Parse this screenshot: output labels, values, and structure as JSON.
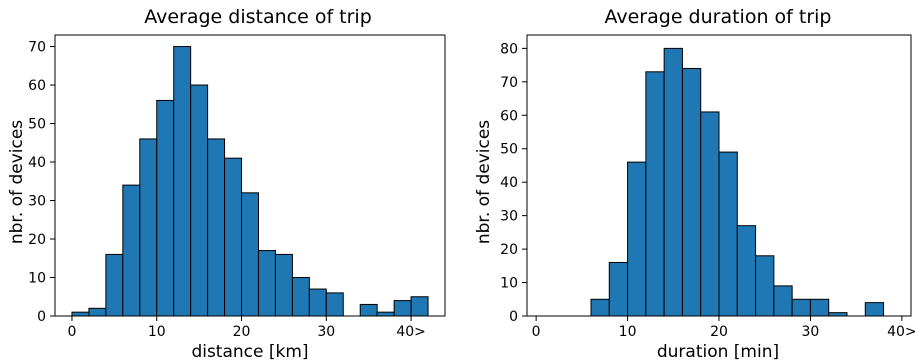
{
  "chart_data": [
    {
      "type": "bar",
      "title": "Average distance of trip",
      "xlabel": "distance [km]",
      "ylabel": "nbr. of devices",
      "xlim": [
        -2,
        44
      ],
      "ylim": [
        0,
        73
      ],
      "x_ticks": [
        0,
        10,
        20,
        30,
        40
      ],
      "x_tick_labels": [
        "0",
        "10",
        "20",
        "30",
        "40>"
      ],
      "y_ticks": [
        0,
        10,
        20,
        30,
        40,
        50,
        60,
        70
      ],
      "y_tick_labels": [
        "0",
        "10",
        "20",
        "30",
        "40",
        "50",
        "60",
        "70"
      ],
      "bin_width": 2,
      "bins_start": [
        0,
        2,
        4,
        6,
        8,
        10,
        12,
        14,
        16,
        18,
        20,
        22,
        24,
        26,
        28,
        30,
        32,
        34,
        36,
        38,
        40
      ],
      "values": [
        1,
        2,
        16,
        34,
        46,
        56,
        70,
        60,
        46,
        41,
        32,
        17,
        16,
        10,
        7,
        6,
        0,
        3,
        1,
        4,
        5
      ],
      "bar_color": "#1f77b4",
      "edge_color": "#000000"
    },
    {
      "type": "bar",
      "title": "Average duration of trip",
      "xlabel": "duration [min]",
      "ylabel": "nbr. of devices",
      "xlim": [
        -1,
        41
      ],
      "ylim": [
        0,
        84
      ],
      "x_ticks": [
        0,
        10,
        20,
        30,
        40
      ],
      "x_tick_labels": [
        "0",
        "10",
        "20",
        "30",
        "40>"
      ],
      "y_ticks": [
        0,
        10,
        20,
        30,
        40,
        50,
        60,
        70,
        80
      ],
      "y_tick_labels": [
        "0",
        "10",
        "20",
        "30",
        "40",
        "50",
        "60",
        "70",
        "80"
      ],
      "bin_width": 2,
      "bins_start": [
        0,
        2,
        4,
        6,
        8,
        10,
        12,
        14,
        16,
        18,
        20,
        22,
        24,
        26,
        28,
        30,
        32,
        34,
        36,
        38
      ],
      "values": [
        0,
        0,
        0,
        5,
        16,
        46,
        73,
        80,
        74,
        61,
        49,
        27,
        18,
        9,
        5,
        5,
        1,
        0,
        4,
        0
      ],
      "bar_color": "#1f77b4",
      "edge_color": "#000000"
    }
  ]
}
